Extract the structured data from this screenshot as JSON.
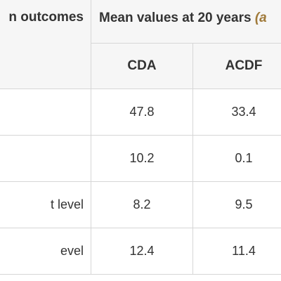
{
  "table": {
    "header_outcome": "n outcomes",
    "header_group": "Mean values at 20 years",
    "header_group_suffix": "(a",
    "subheader_cda": "CDA",
    "subheader_acdf": "ACDF",
    "rows": [
      {
        "outcome": "",
        "cda": "47.8",
        "acdf": "33.4"
      },
      {
        "outcome": "",
        "cda": "10.2",
        "acdf": "0.1"
      },
      {
        "outcome": "t level",
        "cda": "8.2",
        "acdf": "9.5"
      },
      {
        "outcome": "evel",
        "cda": "12.4",
        "acdf": "11.4"
      }
    ]
  }
}
